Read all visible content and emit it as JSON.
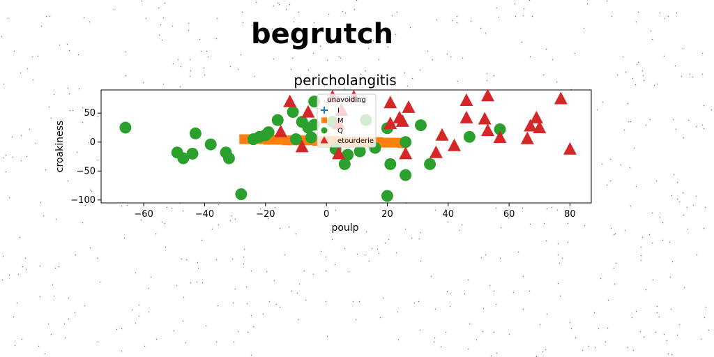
{
  "figure": {
    "suptitle": "begrutch"
  },
  "chart_data": {
    "type": "scatter",
    "title": "pericholangitis",
    "xlabel": "poulp",
    "ylabel": "croakiness",
    "xlim": [
      -74,
      87
    ],
    "ylim": [
      -105,
      90
    ],
    "xticks": [
      -60,
      -40,
      -20,
      0,
      20,
      40,
      60,
      80
    ],
    "yticks": [
      -100,
      -50,
      0,
      50
    ],
    "grid": false,
    "legend": {
      "title": "unavoiding",
      "placement": "top-center",
      "entries": [
        "I",
        "M",
        "Q",
        "etourderie"
      ]
    },
    "series": [
      {
        "name": "I",
        "marker": "plus",
        "color": "#1f77b4",
        "points": [
          [
            -10,
            2
          ],
          [
            -4,
            4
          ],
          [
            0,
            2
          ],
          [
            3,
            4
          ]
        ]
      },
      {
        "name": "M",
        "marker": "square",
        "color": "#ff7f0e",
        "points": [
          [
            -27,
            5
          ],
          [
            -25,
            5
          ],
          [
            -23,
            5
          ],
          [
            -21,
            5
          ],
          [
            -19,
            4
          ],
          [
            -17,
            4
          ],
          [
            -15,
            4
          ],
          [
            -13,
            3
          ],
          [
            -11,
            3
          ],
          [
            -9,
            3
          ],
          [
            -7,
            3
          ],
          [
            -5,
            3
          ],
          [
            -3,
            2
          ],
          [
            -1,
            2
          ],
          [
            1,
            2
          ],
          [
            3,
            2
          ],
          [
            5,
            1
          ],
          [
            7,
            1
          ],
          [
            9,
            1
          ],
          [
            11,
            1
          ],
          [
            13,
            0
          ],
          [
            15,
            0
          ],
          [
            17,
            0
          ],
          [
            19,
            -1
          ],
          [
            21,
            -1
          ],
          [
            23,
            -1
          ],
          [
            25,
            -2
          ]
        ]
      },
      {
        "name": "Q",
        "marker": "circle",
        "color": "#2ca02c",
        "points": [
          [
            -66,
            25
          ],
          [
            -49,
            -18
          ],
          [
            -47,
            -28
          ],
          [
            -44,
            -20
          ],
          [
            -43,
            15
          ],
          [
            -38,
            -4
          ],
          [
            -33,
            -18
          ],
          [
            -32,
            -28
          ],
          [
            -28,
            -90
          ],
          [
            -24,
            5
          ],
          [
            -22,
            9
          ],
          [
            -20,
            12
          ],
          [
            -19,
            17
          ],
          [
            -16,
            38
          ],
          [
            -11,
            52
          ],
          [
            -10,
            5
          ],
          [
            -8,
            35
          ],
          [
            -6,
            25
          ],
          [
            -5,
            8
          ],
          [
            -4,
            30
          ],
          [
            -4,
            70
          ],
          [
            2,
            35
          ],
          [
            3,
            -12
          ],
          [
            6,
            -38
          ],
          [
            7,
            -22
          ],
          [
            11,
            -16
          ],
          [
            13,
            38
          ],
          [
            16,
            -10
          ],
          [
            20,
            24
          ],
          [
            20,
            -93
          ],
          [
            21,
            -38
          ],
          [
            26,
            0
          ],
          [
            26,
            -57
          ],
          [
            34,
            -38
          ],
          [
            31,
            29
          ],
          [
            47,
            9
          ],
          [
            57,
            22
          ]
        ]
      },
      {
        "name": "etourderie",
        "marker": "triangle",
        "color": "#d62728",
        "points": [
          [
            -12,
            70
          ],
          [
            -8,
            -8
          ],
          [
            -6,
            52
          ],
          [
            2,
            78
          ],
          [
            4,
            32
          ],
          [
            4,
            -20
          ],
          [
            5,
            55
          ],
          [
            9,
            78
          ],
          [
            21,
            68
          ],
          [
            21,
            32
          ],
          [
            24,
            42
          ],
          [
            25,
            36
          ],
          [
            26,
            -20
          ],
          [
            27,
            60
          ],
          [
            36,
            -18
          ],
          [
            38,
            12
          ],
          [
            42,
            -6
          ],
          [
            46,
            72
          ],
          [
            46,
            42
          ],
          [
            52,
            40
          ],
          [
            53,
            80
          ],
          [
            53,
            20
          ],
          [
            57,
            8
          ],
          [
            66,
            6
          ],
          [
            67,
            28
          ],
          [
            69,
            42
          ],
          [
            70,
            25
          ],
          [
            77,
            75
          ],
          [
            80,
            -12
          ],
          [
            -15,
            18
          ]
        ]
      }
    ]
  }
}
